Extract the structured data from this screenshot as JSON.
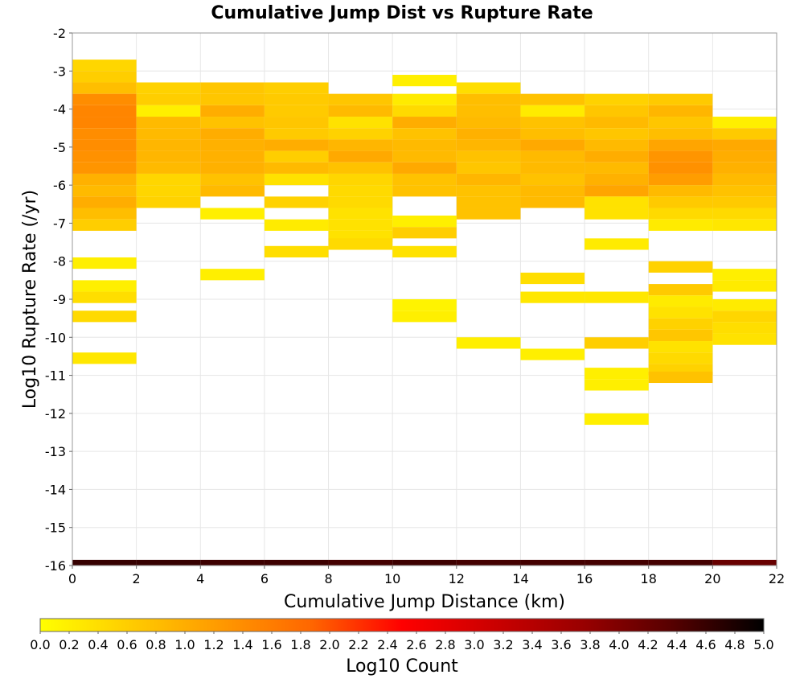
{
  "chart_data": {
    "type": "heatmap",
    "title": "Cumulative Jump Dist vs Rupture Rate",
    "xlabel": "Cumulative Jump Distance (km)",
    "ylabel": "Log10 Rupture Rate (/yr)",
    "xlim": [
      0,
      22
    ],
    "ylim": [
      -16,
      -2
    ],
    "x_bin_width": 2,
    "y_bin_height": 0.3,
    "xticks": [
      0,
      2,
      4,
      6,
      8,
      10,
      12,
      14,
      16,
      18,
      20,
      22
    ],
    "yticks": [
      -2,
      -3,
      -4,
      -5,
      -6,
      -7,
      -8,
      -9,
      -10,
      -11,
      -12,
      -13,
      -14,
      -15,
      -16
    ],
    "grid": true,
    "colorbar": {
      "label": "Log10 Count",
      "min": 0.0,
      "max": 5.0,
      "ticks": [
        "0.0",
        "0.2",
        "0.4",
        "0.6",
        "0.8",
        "1.0",
        "1.2",
        "1.4",
        "1.6",
        "1.8",
        "2.0",
        "2.2",
        "2.4",
        "2.6",
        "2.8",
        "3.0",
        "3.2",
        "3.4",
        "3.6",
        "3.8",
        "4.0",
        "4.2",
        "4.4",
        "4.6",
        "4.8",
        "5.0"
      ],
      "colors": [
        "#ffff00",
        "#ffcc00",
        "#ff9900",
        "#ff6600",
        "#ff0000",
        "#cc0000",
        "#990000",
        "#550000",
        "#000000"
      ]
    },
    "columns": [
      {
        "x": 0,
        "cells": [
          {
            "y": -2.7,
            "v": 0.5
          },
          {
            "y": -3.0,
            "v": 0.6
          },
          {
            "y": -3.3,
            "v": 0.8
          },
          {
            "y": -3.6,
            "v": 1.4
          },
          {
            "y": -3.9,
            "v": 1.5
          },
          {
            "y": -4.2,
            "v": 1.5
          },
          {
            "y": -4.5,
            "v": 1.4
          },
          {
            "y": -4.8,
            "v": 1.4
          },
          {
            "y": -5.1,
            "v": 1.35
          },
          {
            "y": -5.4,
            "v": 1.3
          },
          {
            "y": -5.7,
            "v": 0.95
          },
          {
            "y": -6.0,
            "v": 0.85
          },
          {
            "y": -6.3,
            "v": 1.0
          },
          {
            "y": -6.6,
            "v": 0.8
          },
          {
            "y": -6.9,
            "v": 0.6
          },
          {
            "y": -7.9,
            "v": 0.2
          },
          {
            "y": -8.5,
            "v": 0.2
          },
          {
            "y": -8.8,
            "v": 0.4
          },
          {
            "y": -9.3,
            "v": 0.45
          },
          {
            "y": -10.4,
            "v": 0.3
          }
        ]
      },
      {
        "x": 2,
        "cells": [
          {
            "y": -3.3,
            "v": 0.55
          },
          {
            "y": -3.6,
            "v": 0.6
          },
          {
            "y": -3.9,
            "v": 0.2
          },
          {
            "y": -4.2,
            "v": 0.85
          },
          {
            "y": -4.5,
            "v": 0.85
          },
          {
            "y": -4.8,
            "v": 0.9
          },
          {
            "y": -5.1,
            "v": 0.9
          },
          {
            "y": -5.4,
            "v": 0.85
          },
          {
            "y": -5.7,
            "v": 0.5
          },
          {
            "y": -6.0,
            "v": 0.5
          },
          {
            "y": -6.3,
            "v": 0.55
          }
        ]
      },
      {
        "x": 4,
        "cells": [
          {
            "y": -3.3,
            "v": 0.7
          },
          {
            "y": -3.6,
            "v": 0.7
          },
          {
            "y": -3.9,
            "v": 1.0
          },
          {
            "y": -4.2,
            "v": 0.75
          },
          {
            "y": -4.5,
            "v": 1.0
          },
          {
            "y": -4.8,
            "v": 0.95
          },
          {
            "y": -5.1,
            "v": 0.95
          },
          {
            "y": -5.4,
            "v": 0.95
          },
          {
            "y": -5.7,
            "v": 0.75
          },
          {
            "y": -6.0,
            "v": 0.85
          },
          {
            "y": -6.6,
            "v": 0.2
          },
          {
            "y": -8.2,
            "v": 0.2
          }
        ]
      },
      {
        "x": 6,
        "cells": [
          {
            "y": -3.3,
            "v": 0.6
          },
          {
            "y": -3.6,
            "v": 0.65
          },
          {
            "y": -3.9,
            "v": 0.65
          },
          {
            "y": -4.2,
            "v": 0.7
          },
          {
            "y": -4.5,
            "v": 0.65
          },
          {
            "y": -4.8,
            "v": 1.0
          },
          {
            "y": -5.1,
            "v": 0.6
          },
          {
            "y": -5.4,
            "v": 0.85
          },
          {
            "y": -5.7,
            "v": 0.35
          },
          {
            "y": -6.3,
            "v": 0.55
          },
          {
            "y": -6.9,
            "v": 0.25
          },
          {
            "y": -7.6,
            "v": 0.4
          }
        ]
      },
      {
        "x": 8,
        "cells": [
          {
            "y": -3.6,
            "v": 0.7
          },
          {
            "y": -3.9,
            "v": 0.85
          },
          {
            "y": -4.2,
            "v": 0.35
          },
          {
            "y": -4.5,
            "v": 0.55
          },
          {
            "y": -4.8,
            "v": 0.9
          },
          {
            "y": -5.1,
            "v": 1.05
          },
          {
            "y": -5.4,
            "v": 0.75
          },
          {
            "y": -5.7,
            "v": 0.5
          },
          {
            "y": -6.0,
            "v": 0.45
          },
          {
            "y": -6.3,
            "v": 0.45
          },
          {
            "y": -6.6,
            "v": 0.35
          },
          {
            "y": -6.9,
            "v": 0.35
          },
          {
            "y": -7.2,
            "v": 0.35
          },
          {
            "y": -7.4,
            "v": 0.45
          }
        ]
      },
      {
        "x": 10,
        "cells": [
          {
            "y": -3.1,
            "v": 0.2
          },
          {
            "y": -3.6,
            "v": 0.25
          },
          {
            "y": -3.9,
            "v": 0.45
          },
          {
            "y": -4.2,
            "v": 1.0
          },
          {
            "y": -4.5,
            "v": 0.75
          },
          {
            "y": -4.8,
            "v": 0.85
          },
          {
            "y": -5.1,
            "v": 0.85
          },
          {
            "y": -5.4,
            "v": 1.05
          },
          {
            "y": -5.7,
            "v": 0.75
          },
          {
            "y": -6.0,
            "v": 0.75
          },
          {
            "y": -6.8,
            "v": 0.2
          },
          {
            "y": -7.1,
            "v": 0.6
          },
          {
            "y": -7.6,
            "v": 0.35
          },
          {
            "y": -9.0,
            "v": 0.15
          },
          {
            "y": -9.3,
            "v": 0.2
          }
        ]
      },
      {
        "x": 12,
        "cells": [
          {
            "y": -3.3,
            "v": 0.4
          },
          {
            "y": -3.6,
            "v": 0.8
          },
          {
            "y": -3.9,
            "v": 0.8
          },
          {
            "y": -4.2,
            "v": 0.85
          },
          {
            "y": -4.5,
            "v": 0.95
          },
          {
            "y": -4.8,
            "v": 0.9
          },
          {
            "y": -5.1,
            "v": 0.75
          },
          {
            "y": -5.4,
            "v": 0.7
          },
          {
            "y": -5.7,
            "v": 0.9
          },
          {
            "y": -6.0,
            "v": 0.75
          },
          {
            "y": -6.3,
            "v": 0.75
          },
          {
            "y": -6.6,
            "v": 0.75
          },
          {
            "y": -10.0,
            "v": 0.2
          }
        ]
      },
      {
        "x": 14,
        "cells": [
          {
            "y": -3.6,
            "v": 0.75
          },
          {
            "y": -3.9,
            "v": 0.25
          },
          {
            "y": -4.2,
            "v": 0.75
          },
          {
            "y": -4.5,
            "v": 0.8
          },
          {
            "y": -4.8,
            "v": 1.05
          },
          {
            "y": -5.1,
            "v": 0.85
          },
          {
            "y": -5.4,
            "v": 0.85
          },
          {
            "y": -5.7,
            "v": 0.75
          },
          {
            "y": -6.0,
            "v": 0.85
          },
          {
            "y": -6.3,
            "v": 0.85
          },
          {
            "y": -8.3,
            "v": 0.4
          },
          {
            "y": -8.8,
            "v": 0.3
          },
          {
            "y": -10.3,
            "v": 0.2
          }
        ]
      },
      {
        "x": 16,
        "cells": [
          {
            "y": -3.6,
            "v": 0.55
          },
          {
            "y": -3.9,
            "v": 0.7
          },
          {
            "y": -4.2,
            "v": 0.85
          },
          {
            "y": -4.5,
            "v": 0.7
          },
          {
            "y": -4.8,
            "v": 0.85
          },
          {
            "y": -5.1,
            "v": 1.0
          },
          {
            "y": -5.4,
            "v": 0.85
          },
          {
            "y": -5.7,
            "v": 0.95
          },
          {
            "y": -6.0,
            "v": 1.1
          },
          {
            "y": -6.3,
            "v": 0.35
          },
          {
            "y": -6.6,
            "v": 0.35
          },
          {
            "y": -7.4,
            "v": 0.25
          },
          {
            "y": -8.8,
            "v": 0.3
          },
          {
            "y": -10.0,
            "v": 0.6
          },
          {
            "y": -10.8,
            "v": 0.2
          },
          {
            "y": -11.1,
            "v": 0.2
          },
          {
            "y": -12.0,
            "v": 0.2
          }
        ]
      },
      {
        "x": 18,
        "cells": [
          {
            "y": -3.6,
            "v": 0.65
          },
          {
            "y": -3.9,
            "v": 0.9
          },
          {
            "y": -4.2,
            "v": 0.7
          },
          {
            "y": -4.5,
            "v": 0.8
          },
          {
            "y": -4.8,
            "v": 1.1
          },
          {
            "y": -5.1,
            "v": 1.3
          },
          {
            "y": -5.4,
            "v": 1.35
          },
          {
            "y": -5.7,
            "v": 1.2
          },
          {
            "y": -6.0,
            "v": 0.85
          },
          {
            "y": -6.3,
            "v": 0.65
          },
          {
            "y": -6.6,
            "v": 0.45
          },
          {
            "y": -6.9,
            "v": 0.25
          },
          {
            "y": -8.0,
            "v": 0.55
          },
          {
            "y": -8.6,
            "v": 0.65
          },
          {
            "y": -8.9,
            "v": 0.25
          },
          {
            "y": -9.2,
            "v": 0.35
          },
          {
            "y": -9.5,
            "v": 0.55
          },
          {
            "y": -9.8,
            "v": 0.7
          },
          {
            "y": -10.1,
            "v": 0.35
          },
          {
            "y": -10.4,
            "v": 0.45
          },
          {
            "y": -10.7,
            "v": 0.55
          },
          {
            "y": -10.9,
            "v": 0.75
          }
        ]
      },
      {
        "x": 20,
        "cells": [
          {
            "y": -4.2,
            "v": 0.2
          },
          {
            "y": -4.5,
            "v": 0.65
          },
          {
            "y": -4.8,
            "v": 1.05
          },
          {
            "y": -5.1,
            "v": 1.0
          },
          {
            "y": -5.4,
            "v": 0.95
          },
          {
            "y": -5.7,
            "v": 0.85
          },
          {
            "y": -6.0,
            "v": 0.75
          },
          {
            "y": -6.3,
            "v": 0.65
          },
          {
            "y": -6.6,
            "v": 0.45
          },
          {
            "y": -6.9,
            "v": 0.3
          },
          {
            "y": -8.2,
            "v": 0.2
          },
          {
            "y": -8.5,
            "v": 0.25
          },
          {
            "y": -9.0,
            "v": 0.25
          },
          {
            "y": -9.3,
            "v": 0.5
          },
          {
            "y": -9.6,
            "v": 0.4
          },
          {
            "y": -9.9,
            "v": 0.35
          }
        ]
      }
    ],
    "bottom_row": {
      "y": -16.0,
      "height": 0.15,
      "values": [
        4.6,
        4.6,
        4.55,
        4.55,
        4.5,
        4.55,
        4.5,
        4.5,
        4.5,
        4.5,
        4.2
      ]
    }
  }
}
